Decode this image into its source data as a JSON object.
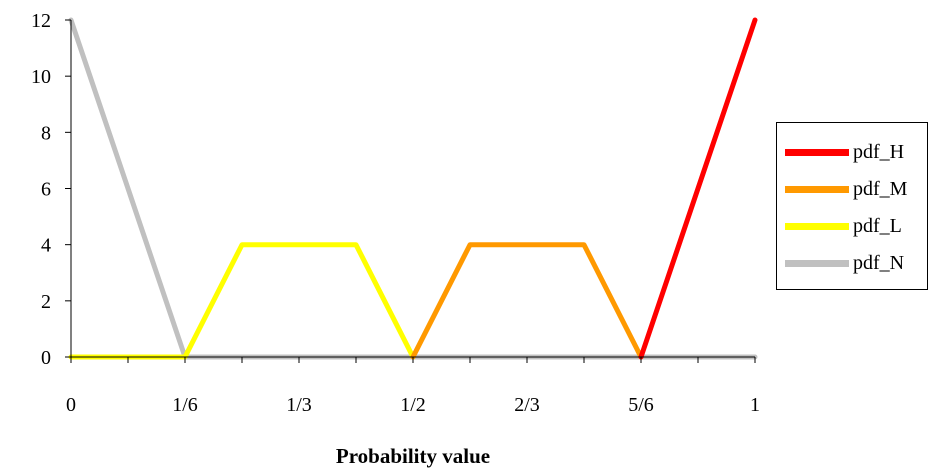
{
  "chart_data": {
    "type": "line",
    "xlabel": "Probability value",
    "ylabel": "",
    "xlim": [
      0,
      1
    ],
    "ylim": [
      0,
      12
    ],
    "x_ticks": [
      0,
      0.0833333,
      0.1666667,
      0.25,
      0.3333333,
      0.4166667,
      0.5,
      0.5833333,
      0.6666667,
      0.75,
      0.8333333,
      0.9166667,
      1
    ],
    "x_tick_labels": [
      {
        "value": 0,
        "label": "0"
      },
      {
        "value": 0.1666667,
        "label": "1/6"
      },
      {
        "value": 0.3333333,
        "label": "1/3"
      },
      {
        "value": 0.5,
        "label": "1/2"
      },
      {
        "value": 0.6666667,
        "label": "2/3"
      },
      {
        "value": 0.8333333,
        "label": "5/6"
      },
      {
        "value": 1,
        "label": "1"
      }
    ],
    "y_ticks": [
      0,
      2,
      4,
      6,
      8,
      10,
      12
    ],
    "y_tick_labels": [
      "0",
      "2",
      "4",
      "6",
      "8",
      "10",
      "12"
    ],
    "grid": false,
    "legend_position": "right",
    "series": [
      {
        "name": "pdf_N",
        "color": "#c0c0c0",
        "x": [
          0,
          0.1666667,
          1
        ],
        "y": [
          12,
          0,
          0
        ]
      },
      {
        "name": "pdf_L",
        "color": "#ffff00",
        "x": [
          0,
          0.1666667,
          0.25,
          0.4166667,
          0.5
        ],
        "y": [
          0,
          0,
          4,
          4,
          0
        ]
      },
      {
        "name": "pdf_M",
        "color": "#ff9900",
        "x": [
          0.5,
          0.5833333,
          0.75,
          0.8333333
        ],
        "y": [
          0,
          4,
          4,
          0
        ]
      },
      {
        "name": "pdf_H",
        "color": "#ff0000",
        "x": [
          0.8333333,
          1
        ],
        "y": [
          0,
          12
        ]
      }
    ],
    "legend_order": [
      "pdf_H",
      "pdf_M",
      "pdf_L",
      "pdf_N"
    ]
  }
}
